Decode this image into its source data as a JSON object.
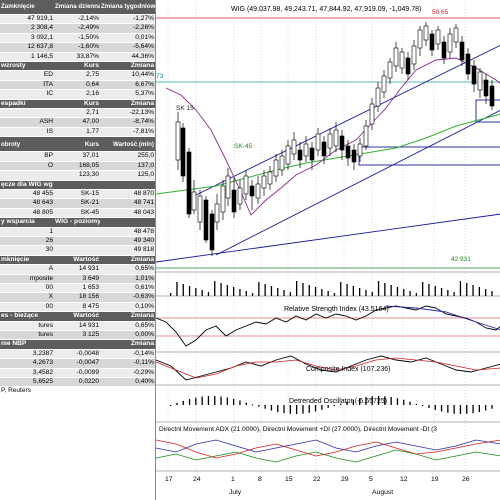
{
  "sections": [
    {
      "id": "indices",
      "type": "hdr2",
      "cols": [
        "Zamknięcie",
        "Zmiana dzienna",
        "Zmiana tygodniowa"
      ],
      "rows": [
        [
          "47 919,1",
          "-2,14%",
          "-1,27%"
        ],
        [
          "2 308,4",
          "-2,49%",
          "-2,26%"
        ],
        [
          "3 092,1",
          "-1,50%",
          "0,01%"
        ],
        [
          "12 637,8",
          "-1,60%",
          "-5,64%"
        ],
        [
          "1 146,5",
          "33,87%",
          "44,36%"
        ]
      ]
    },
    {
      "id": "wzrosty",
      "type": "hdr",
      "cols": [
        "wzrosty",
        "Kurs",
        "Zmiana"
      ],
      "rows": [
        [
          "ED",
          "2,75",
          "10,44%"
        ],
        [
          "ITA",
          "0,64",
          "6,67%"
        ],
        [
          "IC",
          "2,16",
          "5,37%"
        ]
      ]
    },
    {
      "id": "spadki",
      "type": "hdr",
      "cols": [
        "espadki",
        "Kurs",
        "Zmiana"
      ],
      "rows": [
        [
          "",
          "2,71",
          "-22,13%"
        ],
        [
          "ASH",
          "47,00",
          "-8,74%"
        ],
        [
          "IS",
          "1,77",
          "-7,81%"
        ]
      ]
    },
    {
      "id": "obroty",
      "type": "hdr2",
      "cols": [
        "obroty",
        "Kurs",
        "Wartość (mln)"
      ],
      "rows": [
        [
          "BP",
          "37,01",
          "255,0"
        ],
        [
          "O",
          "168,05",
          "137,0"
        ],
        [
          "",
          "123,30",
          "125,0"
        ]
      ]
    },
    {
      "id": "srednie",
      "type": "hdr",
      "cols": [
        "ęcze dla WIG wg cen zamknięcia",
        "",
        ""
      ],
      "rows": [
        [
          "48 455",
          "SK-15",
          "48 870"
        ],
        [
          "48 643",
          "SK-21",
          "48 741"
        ],
        [
          "48 805",
          "SK-45",
          "48 043"
        ]
      ]
    },
    {
      "id": "wsparcia",
      "type": "hdr",
      "cols": [
        "y wsparcia",
        "WIG - poziomy oporu",
        ""
      ],
      "rows": [
        [
          "1",
          "",
          "48 478"
        ],
        [
          "26",
          "",
          "49 340"
        ],
        [
          "30",
          "",
          "49 818"
        ]
      ]
    },
    {
      "id": "indices2",
      "type": "hdr",
      "cols": [
        "mknięcie",
        "Wartość",
        "Zmiana"
      ],
      "rows": [
        [
          "A",
          "14 931",
          "0,65%"
        ],
        [
          "mposite",
          "3 649",
          "1,01%"
        ],
        [
          "00",
          "1 653",
          "0,61%"
        ],
        [
          "X",
          "18 156",
          "-0,63%"
        ],
        [
          "00",
          "8 475",
          "0,10%"
        ]
      ]
    },
    {
      "id": "futures",
      "type": "hdr",
      "cols": [
        "es - bieżące",
        "Wartość",
        "Zmiana"
      ],
      "rows": [
        [
          "tures",
          "14 931",
          "0,65%"
        ],
        [
          "tures",
          "3 125",
          "0,00%"
        ]
      ]
    },
    {
      "id": "fx",
      "type": "hdr",
      "cols": [
        "nie NBP",
        "",
        "Zmiana"
      ],
      "rows": [
        [
          "3,2387",
          "-0,0048",
          "-0,14%"
        ],
        [
          "4,2673",
          "-0,0047",
          "-0,11%"
        ],
        [
          "3,4582",
          "-0,0099",
          "-0,29%"
        ],
        [
          "5,6525",
          "0,0220",
          "0,40%"
        ]
      ]
    }
  ],
  "footer": "P, Reuters",
  "chart": {
    "title": "WIG (49,037.98, 49,243.71, 47,844.92, 47,919.09, -1,049.78)",
    "label_sk15": "SK 15",
    "label_sk45": "SK-45",
    "label_73": "73",
    "label_42931": "42 931",
    "label_5065": "50 65",
    "rsi_title": "Relative Strength Index (43.5164)",
    "comp_title": "Composite Index (107.236)",
    "det_title": "Detrended Oscillator (-6.55725)",
    "dmi_title": "Directnl Movement ADX (21.0000), Directnl Movement +DI (27.0000), Directnl Movement -DI (3",
    "dates": [
      "17",
      "24",
      "1",
      "8",
      "15",
      "22",
      "29",
      "5",
      "12",
      "19",
      "26"
    ],
    "months": [
      "July",
      "August"
    ]
  },
  "chart_data": {
    "type": "candlestick",
    "title": "WIG (49,037.98, 49,243.71, 47,844.92, 47,919.09, -1,049.78)",
    "last": {
      "open": 49037.98,
      "high": 49243.71,
      "low": 47844.92,
      "close": 47919.09,
      "change": -1049.78
    },
    "price_levels_marked": [
      42931
    ],
    "x_ticks": [
      "17",
      "24",
      "1",
      "8",
      "15",
      "22",
      "29",
      "5",
      "12",
      "19",
      "26"
    ],
    "months": [
      "July",
      "August"
    ],
    "indicators": [
      {
        "name": "Relative Strength Index",
        "value": 43.5164
      },
      {
        "name": "Composite Index",
        "value": 107.236
      },
      {
        "name": "Detrended Oscillator",
        "value": -6.55725
      },
      {
        "name": "Directnl Movement ADX",
        "value": 21.0
      },
      {
        "name": "Directnl Movement +DI",
        "value": 27.0
      }
    ]
  }
}
